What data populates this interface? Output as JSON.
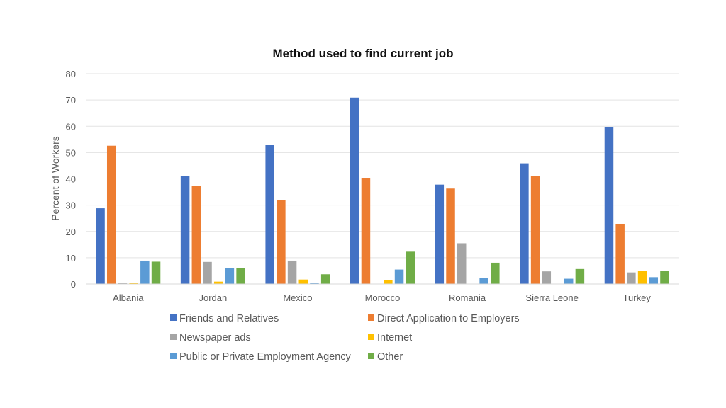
{
  "chart_data": {
    "type": "bar",
    "title": "Method used to find current job",
    "xlabel": "",
    "ylabel": "Percent of Workers",
    "ylim": [
      0,
      80
    ],
    "yticks": [
      0,
      10,
      20,
      30,
      40,
      50,
      60,
      70,
      80
    ],
    "grid": true,
    "legend_position": "bottom",
    "categories": [
      "Albania",
      "Jordan",
      "Mexico",
      "Morocco",
      "Romania",
      "Sierra Leone",
      "Turkey"
    ],
    "series": [
      {
        "name": "Friends and Relatives",
        "color": "#4472C4",
        "values": [
          28.8,
          41.0,
          52.8,
          70.9,
          37.8,
          45.9,
          59.8
        ]
      },
      {
        "name": "Direct Application to Employers",
        "color": "#ED7D31",
        "values": [
          52.6,
          37.2,
          31.9,
          40.4,
          36.3,
          41.0,
          22.9
        ]
      },
      {
        "name": "Newspaper ads",
        "color": "#A5A5A5",
        "values": [
          0.5,
          8.4,
          8.9,
          0,
          15.5,
          4.8,
          4.4
        ]
      },
      {
        "name": "Internet",
        "color": "#FFC000",
        "values": [
          0.3,
          0.9,
          1.7,
          1.4,
          0,
          0,
          4.9
        ]
      },
      {
        "name": "Public or Private Employment Agency",
        "color": "#5B9BD5",
        "values": [
          8.9,
          6.1,
          0.5,
          5.5,
          2.4,
          2.0,
          2.6
        ]
      },
      {
        "name": "Other",
        "color": "#70AD47",
        "values": [
          8.5,
          6.1,
          3.7,
          12.3,
          8.1,
          5.7,
          5.0
        ]
      }
    ]
  }
}
